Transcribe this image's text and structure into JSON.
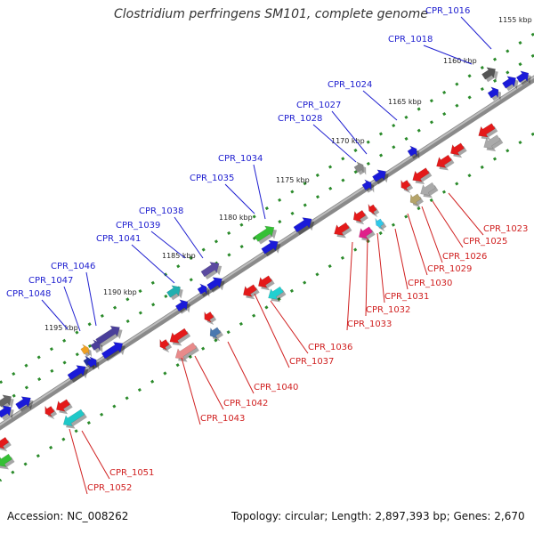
{
  "title": "Clostridium perfringens SM101, complete genome",
  "footer": {
    "accession": "Accession: NC_008262",
    "summary": "Topology: circular; Length: 2,897,393 bp; Genes: 2,670"
  },
  "colors": {
    "backbone": "#7f7f7f",
    "forward_label": "#2020d0",
    "reverse_label": "#d02020",
    "tick": "#2a8a2a"
  },
  "kbp_labels": [
    "1155 kbp",
    "1160 kbp",
    "1165 kbp",
    "1170 kbp",
    "1175 kbp",
    "1180 kbp",
    "1185 kbp",
    "1190 kbp",
    "1195 kbp"
  ],
  "forward_genes": [
    "CPR_1016",
    "CPR_1018",
    "CPR_1024",
    "CPR_1027",
    "CPR_1028",
    "CPR_1034",
    "CPR_1035",
    "CPR_1038",
    "CPR_1039",
    "CPR_1041",
    "CPR_1046",
    "CPR_1047",
    "CPR_1048"
  ],
  "reverse_genes": [
    "CPR_1023",
    "CPR_1025",
    "CPR_1026",
    "CPR_1029",
    "CPR_1030",
    "CPR_1031",
    "CPR_1032",
    "CPR_1033",
    "CPR_1036",
    "CPR_1037",
    "CPR_1040",
    "CPR_1042",
    "CPR_1043",
    "CPR_1051",
    "CPR_1052"
  ]
}
